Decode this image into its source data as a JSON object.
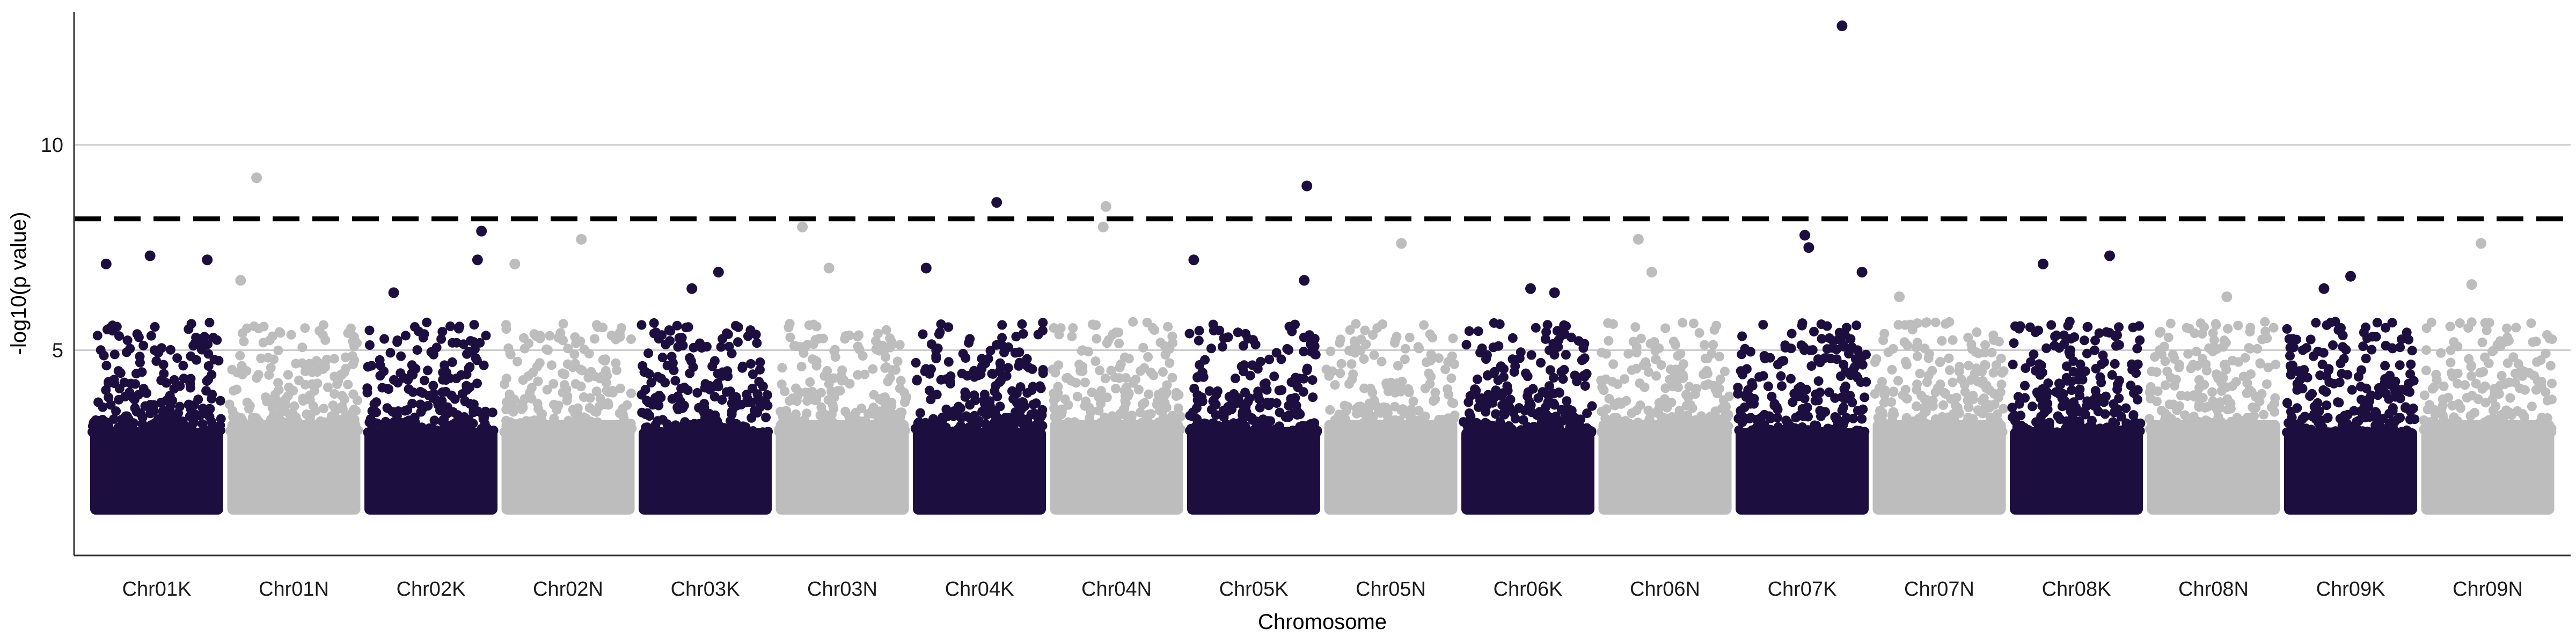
{
  "chart_data": {
    "type": "scatter",
    "subtype": "manhattan",
    "xlabel": "Chromosome",
    "ylabel": "-log10(p value)",
    "ylim": [
      0,
      13.5
    ],
    "yticks": [
      5,
      10
    ],
    "grid": "horizontal major only",
    "legend": "none",
    "threshold": 8.2,
    "chromosomes": [
      "Chr01K",
      "Chr01N",
      "Chr02K",
      "Chr02N",
      "Chr03K",
      "Chr03N",
      "Chr04K",
      "Chr04N",
      "Chr05K",
      "Chr05N",
      "Chr06K",
      "Chr06N",
      "Chr07K",
      "Chr07N",
      "Chr08K",
      "Chr08N",
      "Chr09K",
      "Chr09N"
    ],
    "colors": {
      "odd": "#1c0f40",
      "even": "#bdbdbd",
      "threshold": "#000000",
      "grid": "#cccccc",
      "axis": "#333333"
    },
    "peaks": [
      {
        "chr": "Chr01K",
        "x": 0.45,
        "y": 7.3
      },
      {
        "chr": "Chr01K",
        "x": 0.88,
        "y": 7.2
      },
      {
        "chr": "Chr01K",
        "x": 0.12,
        "y": 7.1
      },
      {
        "chr": "Chr01N",
        "x": 0.22,
        "y": 9.2
      },
      {
        "chr": "Chr01N",
        "x": 0.1,
        "y": 6.7
      },
      {
        "chr": "Chr02K",
        "x": 0.88,
        "y": 7.9
      },
      {
        "chr": "Chr02K",
        "x": 0.85,
        "y": 7.2
      },
      {
        "chr": "Chr02K",
        "x": 0.22,
        "y": 6.4
      },
      {
        "chr": "Chr02N",
        "x": 0.6,
        "y": 7.7
      },
      {
        "chr": "Chr02N",
        "x": 0.1,
        "y": 7.1
      },
      {
        "chr": "Chr03K",
        "x": 0.6,
        "y": 6.9
      },
      {
        "chr": "Chr03K",
        "x": 0.4,
        "y": 6.5
      },
      {
        "chr": "Chr03N",
        "x": 0.2,
        "y": 8.0
      },
      {
        "chr": "Chr03N",
        "x": 0.4,
        "y": 7.0
      },
      {
        "chr": "Chr04K",
        "x": 0.63,
        "y": 8.6
      },
      {
        "chr": "Chr04K",
        "x": 0.1,
        "y": 7.0
      },
      {
        "chr": "Chr04N",
        "x": 0.42,
        "y": 8.5
      },
      {
        "chr": "Chr04N",
        "x": 0.4,
        "y": 8.0
      },
      {
        "chr": "Chr05K",
        "x": 0.9,
        "y": 9.0
      },
      {
        "chr": "Chr05K",
        "x": 0.05,
        "y": 7.2
      },
      {
        "chr": "Chr05K",
        "x": 0.88,
        "y": 6.7
      },
      {
        "chr": "Chr05N",
        "x": 0.58,
        "y": 7.6
      },
      {
        "chr": "Chr06K",
        "x": 0.52,
        "y": 6.5
      },
      {
        "chr": "Chr06K",
        "x": 0.7,
        "y": 6.4
      },
      {
        "chr": "Chr06N",
        "x": 0.3,
        "y": 7.7
      },
      {
        "chr": "Chr06N",
        "x": 0.4,
        "y": 6.9
      },
      {
        "chr": "Chr07K",
        "x": 0.8,
        "y": 12.9
      },
      {
        "chr": "Chr07K",
        "x": 0.52,
        "y": 7.8
      },
      {
        "chr": "Chr07K",
        "x": 0.55,
        "y": 7.5
      },
      {
        "chr": "Chr07K",
        "x": 0.95,
        "y": 6.9
      },
      {
        "chr": "Chr07N",
        "x": 0.2,
        "y": 6.3
      },
      {
        "chr": "Chr08K",
        "x": 0.75,
        "y": 7.3
      },
      {
        "chr": "Chr08K",
        "x": 0.25,
        "y": 7.1
      },
      {
        "chr": "Chr08N",
        "x": 0.6,
        "y": 6.3
      },
      {
        "chr": "Chr09K",
        "x": 0.5,
        "y": 6.8
      },
      {
        "chr": "Chr09K",
        "x": 0.3,
        "y": 6.5
      },
      {
        "chr": "Chr09N",
        "x": 0.45,
        "y": 7.6
      },
      {
        "chr": "Chr09N",
        "x": 0.38,
        "y": 6.6
      }
    ]
  }
}
